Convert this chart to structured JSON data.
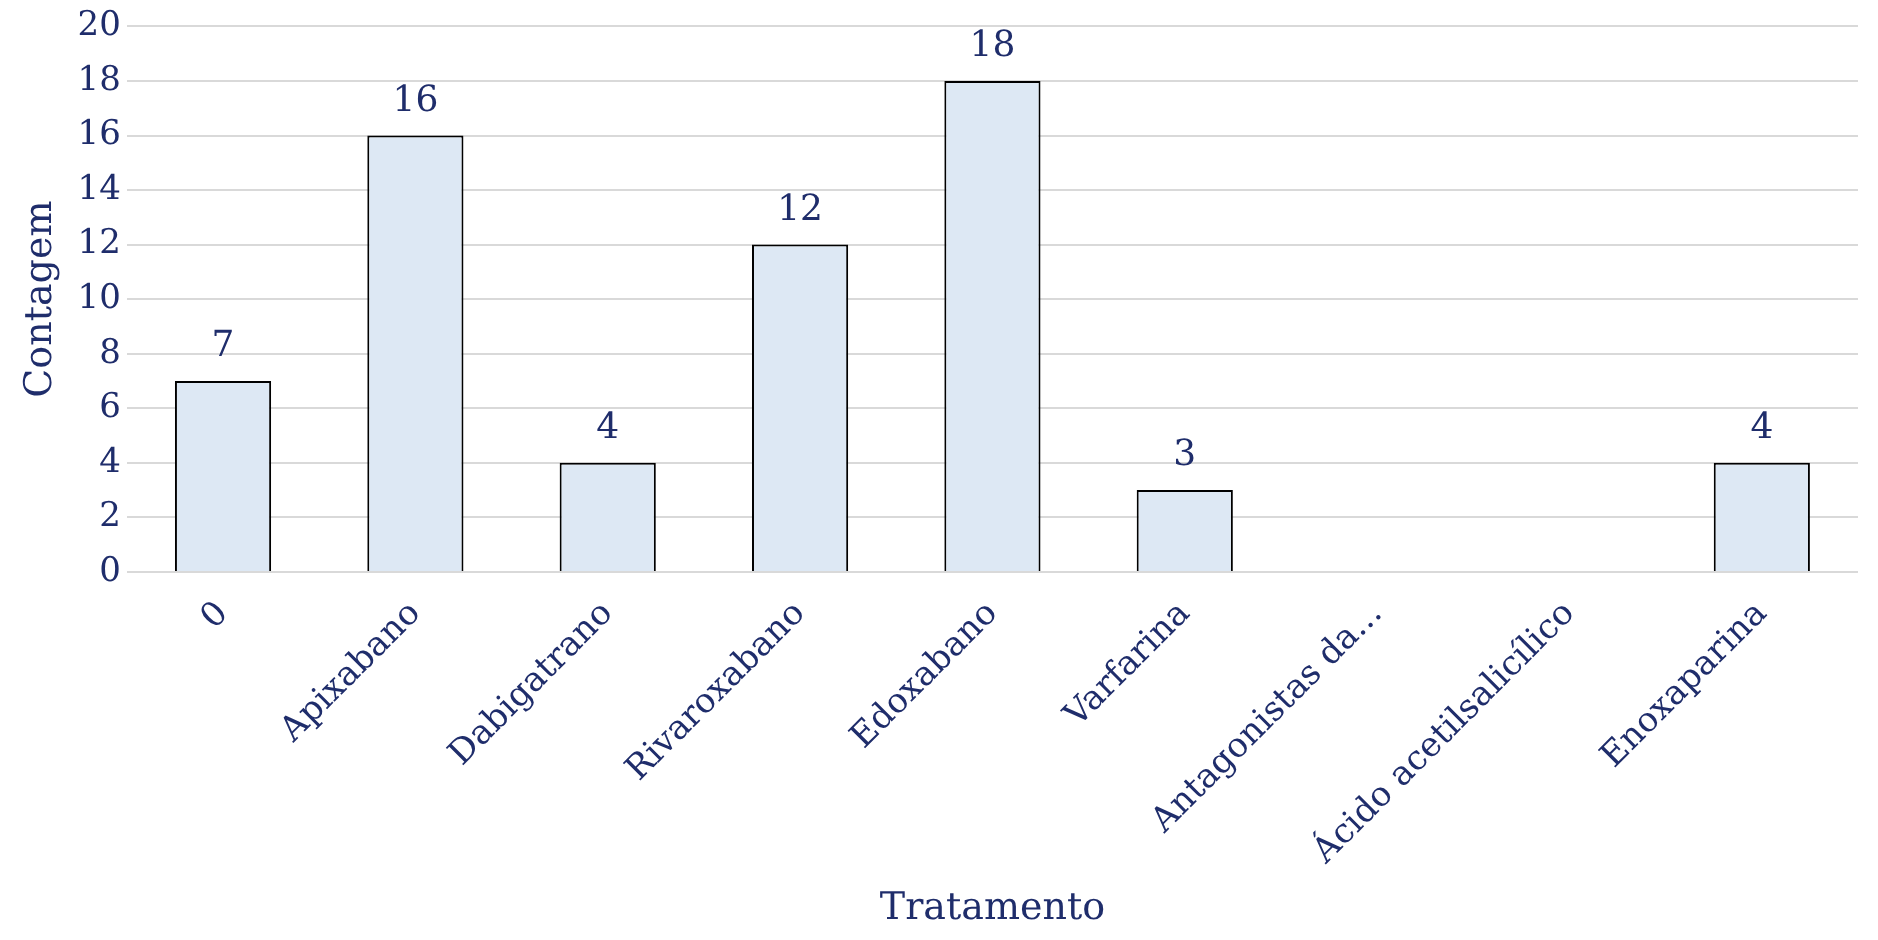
{
  "chart_data": {
    "type": "bar",
    "xlabel": "Tratamento",
    "ylabel": "Contagem",
    "categories": [
      "0",
      "Apixabano",
      "Dabigatrano",
      "Rivaroxabano",
      "Edoxabano",
      "Varfarina",
      "Antagonistas da...",
      "Ácido acetilsalicílico",
      "Enoxaparina"
    ],
    "values": [
      7,
      16,
      4,
      12,
      18,
      3,
      null,
      null,
      4
    ],
    "value_labels": [
      "7",
      "16",
      "4",
      "12",
      "18",
      "3",
      null,
      null,
      "4"
    ],
    "color": "#dde8f4",
    "ylim": [
      0,
      20
    ],
    "yticks": [
      0,
      2,
      4,
      6,
      8,
      10,
      12,
      14,
      16,
      18,
      20
    ],
    "grid": "y"
  }
}
